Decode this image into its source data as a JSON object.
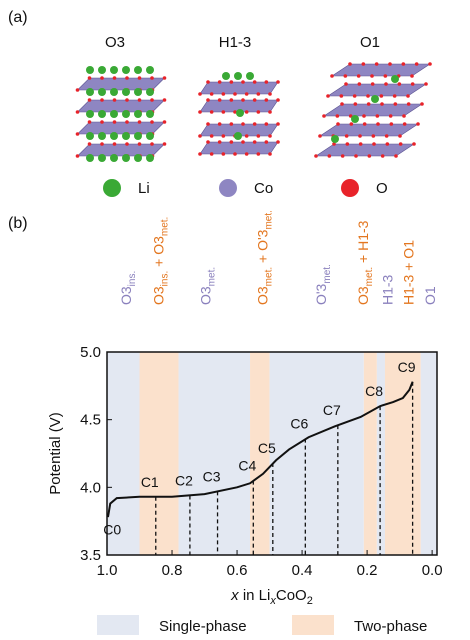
{
  "panel_a": {
    "label": "(a)",
    "structures": [
      "O3",
      "H1-3",
      "O1"
    ],
    "legend": [
      {
        "name": "Li",
        "color": "#3aa935"
      },
      {
        "name": "Co",
        "color": "#8e86c2"
      },
      {
        "name": "O",
        "color": "#e8232a"
      }
    ]
  },
  "chart_data": {
    "type": "line",
    "panel_label": "(b)",
    "ylabel": "Potential (V)",
    "xlabel_parts": [
      "x",
      " in Li",
      "x",
      "CoO",
      "2"
    ],
    "xlabel_styles": [
      "italic",
      "normal",
      "italic-sub",
      "normal",
      "sub"
    ],
    "xlim": [
      1.0,
      -0.015
    ],
    "ylim": [
      3.5,
      5.0
    ],
    "xticks": [
      {
        "value": 1.0,
        "label": "1.0"
      },
      {
        "value": 0.8,
        "label": "0.8"
      },
      {
        "value": 0.6,
        "label": "0.6"
      },
      {
        "value": 0.4,
        "label": "0.4"
      },
      {
        "value": 0.2,
        "label": "0.2"
      },
      {
        "value": 0.0,
        "label": "0.0"
      }
    ],
    "yticks": [
      {
        "value": 3.5,
        "label": "3.5"
      },
      {
        "value": 4.0,
        "label": "4.0"
      },
      {
        "value": 4.5,
        "label": "4.5"
      },
      {
        "value": 5.0,
        "label": "5.0"
      }
    ],
    "series": [
      {
        "color": "#111111",
        "x": [
          0.997,
          0.99,
          0.97,
          0.9,
          0.8,
          0.7,
          0.6,
          0.56,
          0.52,
          0.48,
          0.44,
          0.38,
          0.3,
          0.22,
          0.16,
          0.12,
          0.09,
          0.07,
          0.06
        ],
        "values": [
          3.78,
          3.88,
          3.92,
          3.93,
          3.93,
          3.95,
          4.0,
          4.03,
          4.1,
          4.2,
          4.28,
          4.37,
          4.45,
          4.52,
          4.6,
          4.63,
          4.66,
          4.72,
          4.78
        ]
      }
    ],
    "points": [
      {
        "label": "C0",
        "x": 0.99,
        "y": 3.8
      },
      {
        "label": "C1",
        "x": 0.85,
        "y": 3.93
      },
      {
        "label": "C2",
        "x": 0.745,
        "y": 3.94
      },
      {
        "label": "C3",
        "x": 0.66,
        "y": 3.97
      },
      {
        "label": "C4",
        "x": 0.55,
        "y": 4.05
      },
      {
        "label": "C5",
        "x": 0.49,
        "y": 4.18
      },
      {
        "label": "C6",
        "x": 0.39,
        "y": 4.36
      },
      {
        "label": "C7",
        "x": 0.29,
        "y": 4.46
      },
      {
        "label": "C8",
        "x": 0.16,
        "y": 4.6
      },
      {
        "label": "C9",
        "x": 0.06,
        "y": 4.78
      }
    ],
    "regions": [
      {
        "from": 1.0,
        "to": 0.9,
        "kind": 0
      },
      {
        "from": 0.9,
        "to": 0.78,
        "kind": 1
      },
      {
        "from": 0.78,
        "to": 0.56,
        "kind": 0
      },
      {
        "from": 0.56,
        "to": 0.5,
        "kind": 1
      },
      {
        "from": 0.5,
        "to": 0.21,
        "kind": 0
      },
      {
        "from": 0.21,
        "to": 0.17,
        "kind": 1
      },
      {
        "from": 0.17,
        "to": 0.145,
        "kind": 0
      },
      {
        "from": 0.145,
        "to": 0.035,
        "kind": 1
      },
      {
        "from": 0.035,
        "to": -0.015,
        "kind": 0
      }
    ],
    "region_legend": [
      {
        "name": "Single-phase",
        "color": "#e3e8f2"
      },
      {
        "name": "Two-phase",
        "color": "#fbe1cc"
      }
    ],
    "phase_labels": [
      {
        "x": 0.945,
        "color": "#8a80bd",
        "parts": [
          "O3",
          "ins."
        ],
        "sub": [
          false,
          true
        ]
      },
      {
        "x": 0.845,
        "color": "#e3761f",
        "parts": [
          "O3",
          "ins.",
          " + O3",
          "met."
        ],
        "sub": [
          false,
          true,
          false,
          true
        ]
      },
      {
        "x": 0.7,
        "color": "#8a80bd",
        "parts": [
          "O3",
          "met."
        ],
        "sub": [
          false,
          true
        ]
      },
      {
        "x": 0.525,
        "color": "#e3761f",
        "parts": [
          "O3",
          "met.",
          " + O'3",
          "met."
        ],
        "sub": [
          false,
          true,
          false,
          true
        ]
      },
      {
        "x": 0.345,
        "color": "#8a80bd",
        "parts": [
          "O'3",
          "met."
        ],
        "sub": [
          false,
          true
        ]
      },
      {
        "x": 0.215,
        "color": "#e3761f",
        "parts": [
          "O3",
          "met.",
          " + H1-3"
        ],
        "sub": [
          false,
          true,
          false
        ]
      },
      {
        "x": 0.14,
        "color": "#8a80bd",
        "parts": [
          "H1-3"
        ],
        "sub": [
          false
        ]
      },
      {
        "x": 0.075,
        "color": "#e3761f",
        "parts": [
          "H1-3 + O1"
        ],
        "sub": [
          false
        ]
      },
      {
        "x": 0.01,
        "color": "#8a80bd",
        "parts": [
          "O1"
        ],
        "sub": [
          false
        ]
      }
    ]
  }
}
